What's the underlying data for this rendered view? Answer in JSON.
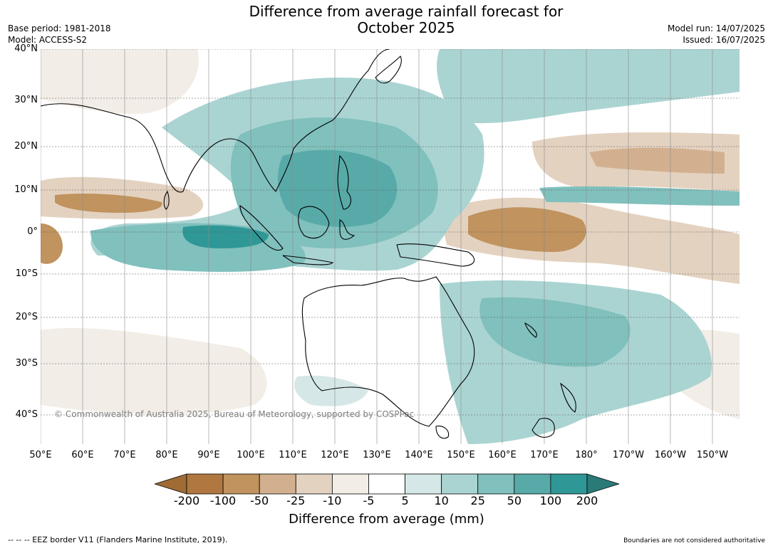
{
  "header": {
    "title_line1": "Difference from average rainfall forecast for",
    "title_line2": "October 2025",
    "base_period": "Base period: 1981-2018",
    "model": "Model: ACCESS-S2",
    "model_run": "Model run: 14/07/2025",
    "issued": "Issued: 16/07/2025"
  },
  "axes": {
    "lat_labels": [
      "40°N",
      "30°N",
      "20°N",
      "10°N",
      "0°",
      "10°S",
      "20°S",
      "30°S",
      "40°S"
    ],
    "lon_labels": [
      "50°E",
      "60°E",
      "70°E",
      "80°E",
      "90°E",
      "100°E",
      "110°E",
      "120°E",
      "130°E",
      "140°E",
      "150°E",
      "160°E",
      "170°E",
      "180°",
      "170°W",
      "160°W",
      "150°W"
    ]
  },
  "copyright": "© Commonwealth of Australia 2025, Bureau of Meteorology, supported by COSPPac",
  "colorbar": {
    "labels": [
      "-200",
      "-100",
      "-50",
      "-25",
      "-10",
      "-5",
      "5",
      "10",
      "25",
      "50",
      "100",
      "200"
    ],
    "colors": [
      "#a06b35",
      "#b07840",
      "#c0935f",
      "#d2b08f",
      "#e4d2c0",
      "#f2ede6",
      "#ffffff",
      "#d5e8e7",
      "#aad4d2",
      "#80c0bd",
      "#58aaa8",
      "#2f9896",
      "#2a7a78"
    ],
    "title": "Difference from average (mm)"
  },
  "footer": {
    "eez": "--  --  -- EEZ border V11 (Flanders Marine Institute, 2019).",
    "disclaimer": "Boundaries are not considered authoritative"
  }
}
